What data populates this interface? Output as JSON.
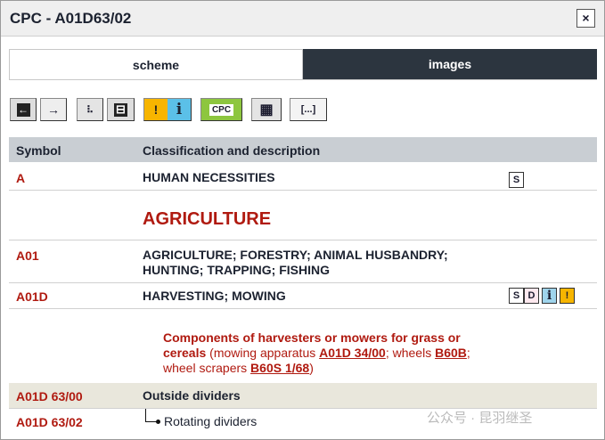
{
  "window": {
    "title": "CPC - A01D63/02",
    "close_label": "×"
  },
  "tabs": [
    {
      "label": "scheme",
      "active": true
    },
    {
      "label": "images",
      "active": false
    }
  ],
  "toolbar": [
    {
      "name": "previous",
      "glyph": "←"
    },
    {
      "name": "next",
      "glyph": "→"
    },
    {
      "name": "tree",
      "glyph": "⠧"
    },
    {
      "name": "expand",
      "glyph": "⊟"
    },
    {
      "name": "warning",
      "glyph": "!"
    },
    {
      "name": "info",
      "glyph": "i"
    },
    {
      "name": "cpc",
      "glyph": "CPC"
    },
    {
      "name": "table",
      "glyph": "▦"
    },
    {
      "name": "more",
      "glyph": "[...]"
    }
  ],
  "table": {
    "headers": [
      "Symbol",
      "Classification and description"
    ],
    "rows": [
      {
        "symbol": "A",
        "desc": "HUMAN NECESSITIES",
        "icons": [
          "S"
        ]
      },
      {
        "symbol": "",
        "desc": "AGRICULTURE"
      },
      {
        "symbol": "A01",
        "desc": "AGRICULTURE; FORESTRY; ANIMAL HUSBANDRY; HUNTING; TRAPPING; FISHING"
      },
      {
        "symbol": "A01D",
        "desc": "HARVESTING; MOWING",
        "icons": [
          "S",
          "D",
          "i",
          "!"
        ]
      },
      {
        "symbol": "",
        "title": "Components of harvesters or mowers for grass or cereals",
        "p1": " (mowing apparatus ",
        "link1": "A01D 34/00",
        "p2": "; wheels ",
        "link2": "B60B",
        "p3": "; wheel scrapers ",
        "link3": "B60S 1/68",
        "p4": ")"
      },
      {
        "symbol": "A01D 63/00",
        "desc": "Outside dividers"
      },
      {
        "symbol": "A01D 63/02",
        "desc": "Rotating dividers"
      }
    ]
  },
  "watermark": "公众号 · 昆羽继圣",
  "colors": {
    "accent": "#b01a10",
    "header": "#c9ced3",
    "highlight_row": "#e9e7dc",
    "tab_dark": "#2c353f",
    "cpc_green": "#8dc63f",
    "warn": "#f7b500",
    "info": "#5bc0e8"
  }
}
